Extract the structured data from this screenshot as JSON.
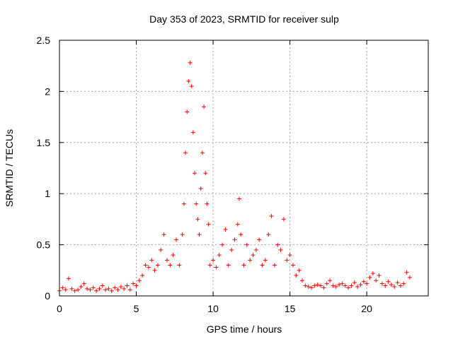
{
  "chart_data": {
    "type": "scatter",
    "title": "Day 353 of 2023, SRMTID for receiver sulp",
    "xlabel": "GPS time / hours",
    "ylabel": "SRMTID / TECUs",
    "xlim": [
      0,
      24
    ],
    "ylim": [
      0,
      2.5
    ],
    "xticks": [
      0,
      5,
      10,
      15,
      20
    ],
    "xtick_labels": [
      "0",
      "5",
      "10",
      "15",
      "20"
    ],
    "yticks": [
      0,
      0.5,
      1,
      1.5,
      2,
      2.5
    ],
    "ytick_labels": [
      "0",
      "0.5",
      "1",
      "1.5",
      "2",
      "2.5"
    ],
    "grid": true,
    "marker": "plus",
    "color": "#ff0000",
    "series": [
      {
        "name": "sulp",
        "x": [
          0.0,
          0.2,
          0.4,
          0.6,
          0.8,
          1.0,
          1.2,
          1.4,
          1.6,
          1.8,
          2.0,
          2.2,
          2.4,
          2.6,
          2.8,
          3.0,
          3.2,
          3.4,
          3.6,
          3.8,
          4.0,
          4.2,
          4.4,
          4.6,
          4.8,
          5.0,
          5.2,
          5.4,
          5.6,
          5.8,
          6.0,
          6.2,
          6.4,
          6.6,
          6.8,
          7.0,
          7.2,
          7.4,
          7.6,
          7.8,
          8.0,
          8.1,
          8.2,
          8.3,
          8.4,
          8.5,
          8.6,
          8.7,
          8.8,
          8.9,
          9.0,
          9.1,
          9.2,
          9.3,
          9.4,
          9.5,
          9.6,
          9.7,
          9.8,
          10.0,
          10.2,
          10.4,
          10.6,
          10.8,
          11.0,
          11.2,
          11.4,
          11.6,
          11.7,
          11.8,
          12.0,
          12.2,
          12.4,
          12.6,
          12.8,
          13.0,
          13.2,
          13.4,
          13.6,
          13.8,
          14.0,
          14.2,
          14.4,
          14.6,
          14.8,
          15.0,
          15.2,
          15.4,
          15.6,
          15.8,
          16.0,
          16.2,
          16.4,
          16.6,
          16.8,
          17.0,
          17.2,
          17.4,
          17.6,
          17.8,
          18.0,
          18.2,
          18.4,
          18.6,
          18.8,
          19.0,
          19.2,
          19.4,
          19.6,
          19.8,
          20.0,
          20.2,
          20.4,
          20.6,
          20.8,
          21.0,
          21.2,
          21.4,
          21.6,
          21.8,
          22.0,
          22.2,
          22.4,
          22.6,
          22.8
        ],
        "y": [
          0.05,
          0.08,
          0.06,
          0.17,
          0.07,
          0.05,
          0.06,
          0.09,
          0.12,
          0.07,
          0.06,
          0.08,
          0.05,
          0.07,
          0.1,
          0.06,
          0.07,
          0.05,
          0.08,
          0.06,
          0.09,
          0.07,
          0.1,
          0.06,
          0.12,
          0.1,
          0.15,
          0.2,
          0.3,
          0.28,
          0.35,
          0.25,
          0.3,
          0.45,
          0.6,
          0.35,
          0.3,
          0.4,
          0.55,
          0.3,
          0.6,
          0.9,
          1.4,
          1.8,
          2.1,
          2.28,
          2.05,
          1.6,
          1.2,
          0.9,
          0.75,
          0.6,
          1.05,
          1.4,
          1.85,
          1.2,
          0.9,
          0.7,
          0.3,
          0.35,
          0.28,
          0.4,
          0.5,
          0.65,
          0.3,
          0.45,
          0.55,
          0.7,
          0.95,
          0.6,
          0.3,
          0.5,
          0.35,
          0.4,
          0.45,
          0.55,
          0.3,
          0.35,
          0.6,
          0.78,
          0.3,
          0.5,
          0.45,
          0.75,
          0.35,
          0.4,
          0.3,
          0.2,
          0.25,
          0.15,
          0.1,
          0.09,
          0.08,
          0.1,
          0.11,
          0.1,
          0.08,
          0.12,
          0.15,
          0.1,
          0.09,
          0.11,
          0.12,
          0.1,
          0.08,
          0.1,
          0.13,
          0.09,
          0.11,
          0.14,
          0.12,
          0.18,
          0.22,
          0.15,
          0.2,
          0.12,
          0.1,
          0.14,
          0.11,
          0.09,
          0.13,
          0.1,
          0.12,
          0.23,
          0.18
        ]
      }
    ]
  }
}
